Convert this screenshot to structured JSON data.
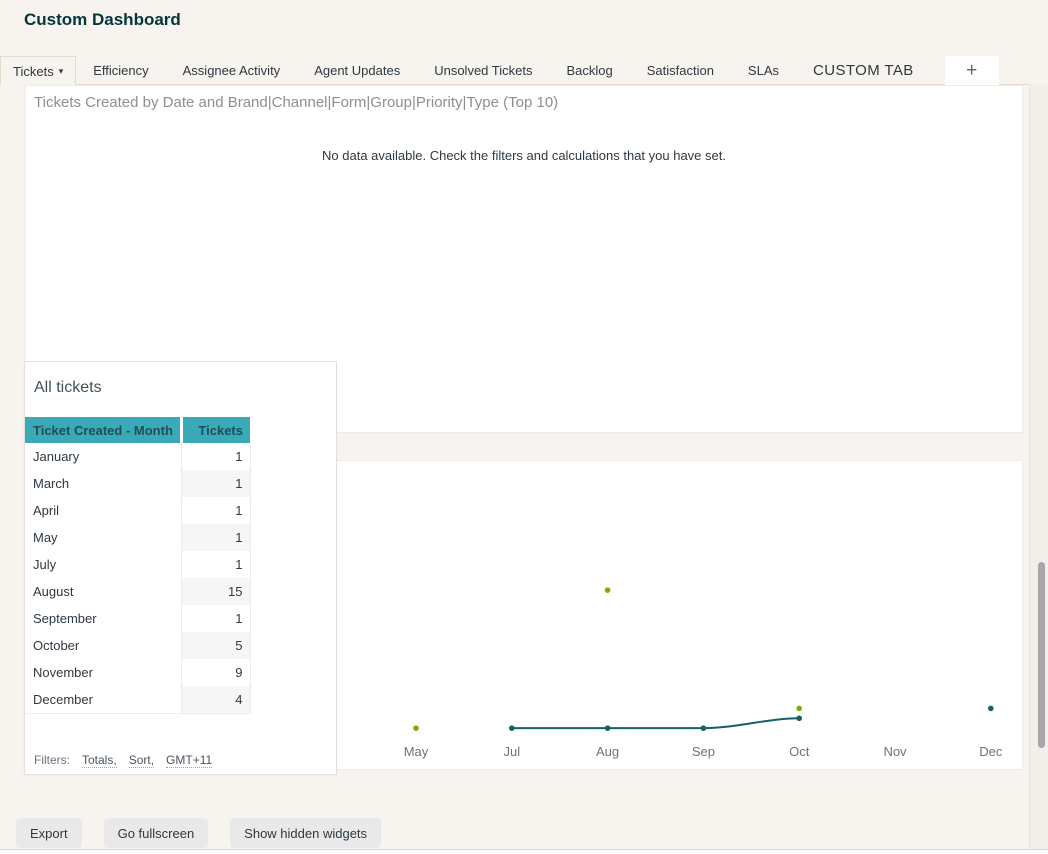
{
  "page": {
    "title": "Custom Dashboard"
  },
  "tabs": {
    "items": [
      {
        "label": "Tickets",
        "active": true,
        "caret": true
      },
      {
        "label": "Efficiency"
      },
      {
        "label": "Assignee Activity"
      },
      {
        "label": "Agent Updates"
      },
      {
        "label": "Unsolved Tickets"
      },
      {
        "label": "Backlog"
      },
      {
        "label": "Satisfaction"
      },
      {
        "label": "SLAs"
      },
      {
        "label": "CUSTOM TAB",
        "large": true
      }
    ],
    "add_label": "+"
  },
  "no_data_widget": {
    "title": "Tickets Created by Date and Brand|Channel|Form|Group|Priority|Type (Top 10)",
    "message": "No data available. Check the filters and calculations that you have set."
  },
  "table_widget": {
    "title": "All tickets",
    "columns": [
      "Ticket Created - Month",
      "Tickets"
    ],
    "rows": [
      [
        "January",
        "1"
      ],
      [
        "March",
        "1"
      ],
      [
        "April",
        "1"
      ],
      [
        "May",
        "1"
      ],
      [
        "July",
        "1"
      ],
      [
        "August",
        "15"
      ],
      [
        "September",
        "1"
      ],
      [
        "October",
        "5"
      ],
      [
        "November",
        "9"
      ],
      [
        "December",
        "4"
      ]
    ],
    "filters_label": "Filters:",
    "filter_links": [
      "Totals,",
      "Sort,",
      "GMT+11"
    ]
  },
  "chart_data": {
    "type": "line",
    "title": "",
    "categories": [
      "May",
      "Jul",
      "Aug",
      "Sep",
      "Oct",
      "Nov",
      "Dec"
    ],
    "series": [
      {
        "name": "green-series",
        "color": "#84aa00",
        "draw": "points",
        "data": [
          {
            "x": "May",
            "y": 1
          },
          {
            "x": "Aug",
            "y": 15
          },
          {
            "x": "Oct",
            "y": 3
          }
        ]
      },
      {
        "name": "teal-series",
        "color": "#16606a",
        "draw": "line+points",
        "data": [
          {
            "x": "Jul",
            "y": 1
          },
          {
            "x": "Aug",
            "y": 1
          },
          {
            "x": "Sep",
            "y": 1
          },
          {
            "x": "Oct",
            "y": 2
          },
          {
            "x": "Dec",
            "y": 3
          }
        ]
      }
    ],
    "ylim": [
      0,
      16
    ],
    "grid": false,
    "legend": "none",
    "x_axis_label_color": "#68737d"
  },
  "footer": {
    "export": "Export",
    "fullscreen": "Go fullscreen",
    "hidden": "Show hidden widgets"
  },
  "colors": {
    "page_bg": "#f7f3ee",
    "title": "#03363d",
    "table_header_bg": "#3aa9b8",
    "widget_title": "#8e8e8e",
    "link_underline": "#7fa8cc"
  }
}
